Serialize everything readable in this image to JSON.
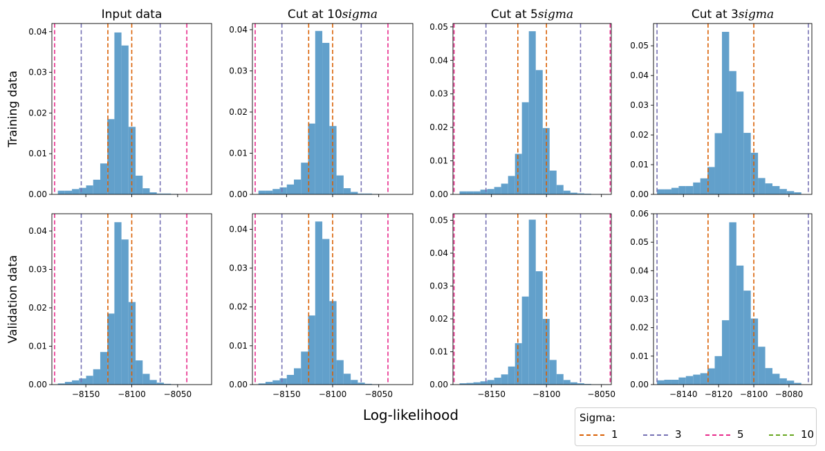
{
  "figure": {
    "xlabel": "Log-likelihood",
    "row_labels": [
      "Training data",
      "Validation data"
    ]
  },
  "legend": {
    "title": "Sigma:",
    "entries": [
      {
        "label": "1",
        "color": "#d95f02"
      },
      {
        "label": "3",
        "color": "#7570b3"
      },
      {
        "label": "5",
        "color": "#e7298a"
      },
      {
        "label": "10",
        "color": "#66a61e"
      }
    ]
  },
  "colors": {
    "bars": "#62a0cb",
    "sigma1": "#d95f02",
    "sigma3": "#7570b3",
    "sigma5": "#e7298a",
    "sigma10": "#66a61e"
  },
  "chart_data": [
    {
      "type": "bar",
      "title": "Input data",
      "ylabel": "Training data",
      "xlim": [
        -8187,
        -8013
      ],
      "ylim": [
        0,
        0.042
      ],
      "xticks": [
        -8150,
        -8100,
        -8050
      ],
      "xtick_labels": [
        "",
        "",
        ""
      ],
      "yticks": [
        0,
        0.01,
        0.02,
        0.03,
        0.04
      ],
      "ytick_labels": [
        "0.00",
        "0.01",
        "0.02",
        "0.03",
        "0.04"
      ],
      "bin_width": 7.7,
      "bins_left": [
        -8180.5,
        -8172.8,
        -8165.1,
        -8157.4,
        -8149.7,
        -8142.0,
        -8134.3,
        -8126.6,
        -8118.9,
        -8111.2,
        -8103.5,
        -8095.8,
        -8088.1,
        -8080.4,
        -8072.7,
        -8065.0,
        -8057.3,
        -8049.6
      ],
      "values": [
        0.0009,
        0.0009,
        0.0013,
        0.0016,
        0.0022,
        0.0036,
        0.0076,
        0.0185,
        0.0398,
        0.0366,
        0.0166,
        0.0046,
        0.0015,
        0.0005,
        0.0002,
        0.0002,
        0.0001,
        0.0
      ],
      "vlines": [
        {
          "sigma": "1",
          "x": [
            -8126.0,
            -8100.0
          ]
        },
        {
          "sigma": "3",
          "x": [
            -8155.0,
            -8069.0
          ]
        },
        {
          "sigma": "5",
          "x": [
            -8184.0,
            -8040.0
          ]
        }
      ]
    },
    {
      "type": "bar",
      "title": "Cut at 10$sigma$",
      "ylabel": "",
      "xlim": [
        -8187,
        -8013
      ],
      "ylim": [
        0,
        0.0415
      ],
      "xticks": [
        -8150,
        -8100,
        -8050
      ],
      "xtick_labels": [
        "",
        "",
        ""
      ],
      "yticks": [
        0,
        0.01,
        0.02,
        0.03,
        0.04
      ],
      "ytick_labels": [
        "0.00",
        "0.01",
        "0.02",
        "0.03",
        "0.04"
      ],
      "bin_width": 7.7,
      "bins_left": [
        -8180.5,
        -8172.8,
        -8165.1,
        -8157.4,
        -8149.7,
        -8142.0,
        -8134.3,
        -8126.6,
        -8118.9,
        -8111.2,
        -8103.5,
        -8095.8,
        -8088.1,
        -8080.4,
        -8072.7,
        -8065.0,
        -8057.3,
        -8049.6
      ],
      "values": [
        0.0009,
        0.0009,
        0.0013,
        0.0017,
        0.0024,
        0.0036,
        0.0077,
        0.0172,
        0.0397,
        0.0368,
        0.0166,
        0.0046,
        0.0015,
        0.0006,
        0.0002,
        0.0002,
        0.0001,
        0.0
      ],
      "vlines": [
        {
          "sigma": "1",
          "x": [
            -8126.0,
            -8100.0
          ]
        },
        {
          "sigma": "3",
          "x": [
            -8155.0,
            -8069.0
          ]
        },
        {
          "sigma": "5",
          "x": [
            -8184.0,
            -8040.0
          ]
        }
      ]
    },
    {
      "type": "bar",
      "title": "Cut at 5$sigma$",
      "ylabel": "",
      "xlim": [
        -8185,
        -8041
      ],
      "ylim": [
        0,
        0.051
      ],
      "xticks": [
        -8150,
        -8100,
        -8050
      ],
      "xtick_labels": [
        "",
        "",
        ""
      ],
      "yticks": [
        0,
        0.01,
        0.02,
        0.03,
        0.04,
        0.05
      ],
      "ytick_labels": [
        "0.00",
        "0.01",
        "0.02",
        "0.03",
        "0.04",
        "0.05"
      ],
      "bin_width": 6.3,
      "bins_left": [
        -8179.0,
        -8172.7,
        -8166.4,
        -8160.1,
        -8153.8,
        -8147.5,
        -8141.2,
        -8134.9,
        -8128.6,
        -8122.3,
        -8116.0,
        -8109.7,
        -8103.4,
        -8097.1,
        -8090.8,
        -8084.5,
        -8078.2,
        -8071.9,
        -8065.6,
        -8059.3,
        -8053.0
      ],
      "values": [
        0.0009,
        0.0009,
        0.0009,
        0.0014,
        0.0016,
        0.0022,
        0.0032,
        0.0055,
        0.0121,
        0.0275,
        0.0487,
        0.0371,
        0.0198,
        0.0071,
        0.0028,
        0.0011,
        0.0005,
        0.0003,
        0.0002,
        0.0001,
        0.0001
      ],
      "vlines": [
        {
          "sigma": "1",
          "x": [
            -8126.0,
            -8100.0
          ]
        },
        {
          "sigma": "3",
          "x": [
            -8155.0,
            -8069.0
          ]
        },
        {
          "sigma": "5",
          "x": [
            -8184.0,
            -8042.0
          ]
        }
      ]
    },
    {
      "type": "bar",
      "title": "Cut at 3$sigma$",
      "ylabel": "",
      "xlim": [
        -8157,
        -8067
      ],
      "ylim": [
        0,
        0.0575
      ],
      "xticks": [
        -8140,
        -8120,
        -8100,
        -8080
      ],
      "xtick_labels": [
        "",
        "",
        "",
        ""
      ],
      "yticks": [
        0,
        0.01,
        0.02,
        0.03,
        0.04,
        0.05
      ],
      "ytick_labels": [
        "0.00",
        "0.01",
        "0.02",
        "0.03",
        "0.04",
        "0.05"
      ],
      "bin_width": 4.1,
      "bins_left": [
        -8155.0,
        -8150.9,
        -8146.8,
        -8142.7,
        -8138.6,
        -8134.5,
        -8130.4,
        -8126.3,
        -8122.2,
        -8118.1,
        -8114.0,
        -8109.9,
        -8105.8,
        -8101.7,
        -8097.6,
        -8093.5,
        -8089.4,
        -8085.3,
        -8081.2,
        -8077.1,
        -8073.0
      ],
      "values": [
        0.0017,
        0.0017,
        0.0022,
        0.0028,
        0.0028,
        0.004,
        0.0054,
        0.0092,
        0.0206,
        0.0547,
        0.0415,
        0.0346,
        0.0207,
        0.014,
        0.0055,
        0.0037,
        0.0028,
        0.0018,
        0.0011,
        0.0007,
        0.0
      ],
      "vlines": [
        {
          "sigma": "1",
          "x": [
            -8126.0,
            -8100.0
          ]
        },
        {
          "sigma": "3",
          "x": [
            -8155.0,
            -8069.0
          ]
        }
      ]
    },
    {
      "type": "bar",
      "title": "",
      "ylabel": "Validation data",
      "xlim": [
        -8187,
        -8013
      ],
      "ylim": [
        0,
        0.0445
      ],
      "xticks": [
        -8150,
        -8100,
        -8050
      ],
      "xtick_labels": [
        "−8150",
        "−8100",
        "−8050"
      ],
      "yticks": [
        0,
        0.01,
        0.02,
        0.03,
        0.04
      ],
      "ytick_labels": [
        "0.00",
        "0.01",
        "0.02",
        "0.03",
        "0.04"
      ],
      "bin_width": 7.7,
      "bins_left": [
        -8180.5,
        -8172.8,
        -8165.1,
        -8157.4,
        -8149.7,
        -8142.0,
        -8134.3,
        -8126.6,
        -8118.9,
        -8111.2,
        -8103.5,
        -8095.8,
        -8088.1,
        -8080.4,
        -8072.7,
        -8065.0,
        -8057.3,
        -8049.6
      ],
      "values": [
        0.0003,
        0.0007,
        0.0011,
        0.0016,
        0.0023,
        0.004,
        0.0085,
        0.0185,
        0.0423,
        0.0378,
        0.0215,
        0.0063,
        0.0028,
        0.0012,
        0.0005,
        0.0002,
        0.0001,
        0.0
      ],
      "vlines": [
        {
          "sigma": "1",
          "x": [
            -8126.0,
            -8100.0
          ]
        },
        {
          "sigma": "3",
          "x": [
            -8155.0,
            -8069.0
          ]
        },
        {
          "sigma": "5",
          "x": [
            -8184.0,
            -8040.0
          ]
        }
      ]
    },
    {
      "type": "bar",
      "title": "",
      "ylabel": "",
      "xlim": [
        -8187,
        -8013
      ],
      "ylim": [
        0,
        0.044
      ],
      "xticks": [
        -8150,
        -8100,
        -8050
      ],
      "xtick_labels": [
        "−8150",
        "−8100",
        "−8050"
      ],
      "yticks": [
        0,
        0.01,
        0.02,
        0.03,
        0.04
      ],
      "ytick_labels": [
        "0.00",
        "0.01",
        "0.02",
        "0.03",
        "0.04"
      ],
      "bin_width": 7.7,
      "bins_left": [
        -8180.5,
        -8172.8,
        -8165.1,
        -8157.4,
        -8149.7,
        -8142.0,
        -8134.3,
        -8126.6,
        -8118.9,
        -8111.2,
        -8103.5,
        -8095.8,
        -8088.1,
        -8080.4,
        -8072.7,
        -8065.0,
        -8057.3,
        -8049.6
      ],
      "values": [
        0.0003,
        0.0007,
        0.0011,
        0.0016,
        0.0025,
        0.0042,
        0.0085,
        0.0178,
        0.042,
        0.0375,
        0.0215,
        0.0063,
        0.0028,
        0.0012,
        0.0005,
        0.0002,
        0.0001,
        0.0
      ],
      "vlines": [
        {
          "sigma": "1",
          "x": [
            -8126.0,
            -8100.0
          ]
        },
        {
          "sigma": "3",
          "x": [
            -8155.0,
            -8069.0
          ]
        },
        {
          "sigma": "5",
          "x": [
            -8184.0,
            -8040.0
          ]
        }
      ]
    },
    {
      "type": "bar",
      "title": "",
      "ylabel": "",
      "xlim": [
        -8185,
        -8041
      ],
      "ylim": [
        0,
        0.052
      ],
      "xticks": [
        -8150,
        -8100,
        -8050
      ],
      "xtick_labels": [
        "−8150",
        "−8100",
        "−8050"
      ],
      "yticks": [
        0,
        0.01,
        0.02,
        0.03,
        0.04,
        0.05
      ],
      "ytick_labels": [
        "0.00",
        "0.01",
        "0.02",
        "0.03",
        "0.04",
        "0.05"
      ],
      "bin_width": 6.3,
      "bins_left": [
        -8179.0,
        -8172.7,
        -8166.4,
        -8160.1,
        -8153.8,
        -8147.5,
        -8141.2,
        -8134.9,
        -8128.6,
        -8122.3,
        -8116.0,
        -8109.7,
        -8103.4,
        -8097.1,
        -8090.8,
        -8084.5,
        -8078.2,
        -8071.9,
        -8065.6,
        -8059.3,
        -8053.0
      ],
      "values": [
        0.0004,
        0.0005,
        0.0007,
        0.001,
        0.0014,
        0.0021,
        0.0031,
        0.0055,
        0.0126,
        0.0268,
        0.0502,
        0.0345,
        0.02,
        0.0075,
        0.0032,
        0.0014,
        0.0007,
        0.0004,
        0.0002,
        0.0001,
        0.0001
      ],
      "vlines": [
        {
          "sigma": "1",
          "x": [
            -8126.0,
            -8100.0
          ]
        },
        {
          "sigma": "3",
          "x": [
            -8155.0,
            -8069.0
          ]
        },
        {
          "sigma": "5",
          "x": [
            -8184.0,
            -8042.0
          ]
        }
      ]
    },
    {
      "type": "bar",
      "title": "",
      "ylabel": "",
      "xlim": [
        -8157,
        -8067
      ],
      "ylim": [
        0,
        0.06
      ],
      "xticks": [
        -8140,
        -8120,
        -8100,
        -8080
      ],
      "xtick_labels": [
        "−8140",
        "−8120",
        "−8100",
        "−8080"
      ],
      "yticks": [
        0,
        0.01,
        0.02,
        0.03,
        0.04,
        0.05,
        0.06
      ],
      "ytick_labels": [
        "0.00",
        "0.01",
        "0.02",
        "0.03",
        "0.04",
        "0.05",
        "0.06"
      ],
      "bin_width": 4.1,
      "bins_left": [
        -8155.0,
        -8150.9,
        -8146.8,
        -8142.7,
        -8138.6,
        -8134.5,
        -8130.4,
        -8126.3,
        -8122.2,
        -8118.1,
        -8114.0,
        -8109.9,
        -8105.8,
        -8101.7,
        -8097.6,
        -8093.5,
        -8089.4,
        -8085.3,
        -8081.2,
        -8077.1,
        -8073.0
      ],
      "values": [
        0.0015,
        0.0017,
        0.0017,
        0.0025,
        0.003,
        0.0035,
        0.004,
        0.0057,
        0.01,
        0.0226,
        0.057,
        0.0418,
        0.033,
        0.0232,
        0.0133,
        0.0058,
        0.0038,
        0.0022,
        0.0014,
        0.0006,
        0.0
      ],
      "vlines": [
        {
          "sigma": "1",
          "x": [
            -8126.0,
            -8100.0
          ]
        },
        {
          "sigma": "3",
          "x": [
            -8155.0,
            -8069.0
          ]
        }
      ]
    }
  ]
}
